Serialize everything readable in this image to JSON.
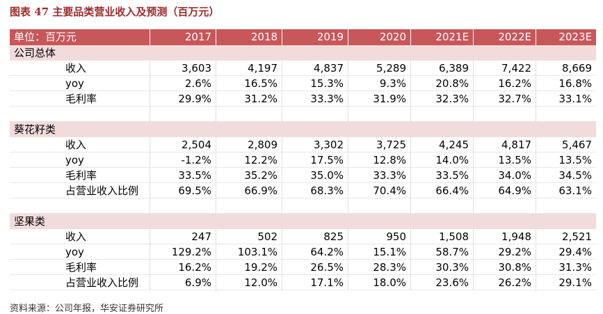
{
  "header": {
    "title": "图表 47 主要品类营业收入及预测（百万元）"
  },
  "table": {
    "unit": "单位：百万元",
    "columns": [
      "2017",
      "2018",
      "2019",
      "2020",
      "2021E",
      "2022E",
      "2023E"
    ],
    "sections": [
      {
        "name": "公司总体",
        "rows": [
          {
            "label": "收入",
            "values": [
              "3,603",
              "4,197",
              "4,837",
              "5,289",
              "6,389",
              "7,422",
              "8,669"
            ]
          },
          {
            "label": "yoy",
            "values": [
              "2.6%",
              "16.5%",
              "15.3%",
              "9.3%",
              "20.8%",
              "16.2%",
              "16.8%"
            ]
          },
          {
            "label": "毛利率",
            "values": [
              "29.9%",
              "31.2%",
              "33.3%",
              "31.9%",
              "32.3%",
              "32.7%",
              "33.1%"
            ]
          }
        ]
      },
      {
        "name": "葵花籽类",
        "rows": [
          {
            "label": "收入",
            "values": [
              "2,504",
              "2,809",
              "3,302",
              "3,725",
              "4,245",
              "4,817",
              "5,467"
            ]
          },
          {
            "label": "yoy",
            "values": [
              "-1.2%",
              "12.2%",
              "17.5%",
              "12.8%",
              "14.0%",
              "13.5%",
              "13.5%"
            ]
          },
          {
            "label": "毛利率",
            "values": [
              "33.5%",
              "35.2%",
              "35.0%",
              "33.3%",
              "33.5%",
              "34.0%",
              "34.5%"
            ]
          },
          {
            "label": "占营业收入比例",
            "values": [
              "69.5%",
              "66.9%",
              "68.3%",
              "70.4%",
              "66.4%",
              "64.9%",
              "63.1%"
            ]
          }
        ]
      },
      {
        "name": "坚果类",
        "rows": [
          {
            "label": "收入",
            "values": [
              "247",
              "502",
              "825",
              "950",
              "1,508",
              "1,948",
              "2,521"
            ]
          },
          {
            "label": "yoy",
            "values": [
              "129.2%",
              "103.1%",
              "64.2%",
              "15.1%",
              "58.7%",
              "29.2%",
              "29.4%"
            ]
          },
          {
            "label": "毛利率",
            "values": [
              "16.2%",
              "19.2%",
              "26.5%",
              "28.3%",
              "30.3%",
              "30.8%",
              "31.3%"
            ]
          },
          {
            "label": "占营业收入比例",
            "values": [
              "6.9%",
              "12.0%",
              "17.1%",
              "18.0%",
              "23.6%",
              "26.2%",
              "29.1%"
            ]
          }
        ]
      }
    ]
  },
  "source": "资料来源：公司年报，华安证券研究所"
}
